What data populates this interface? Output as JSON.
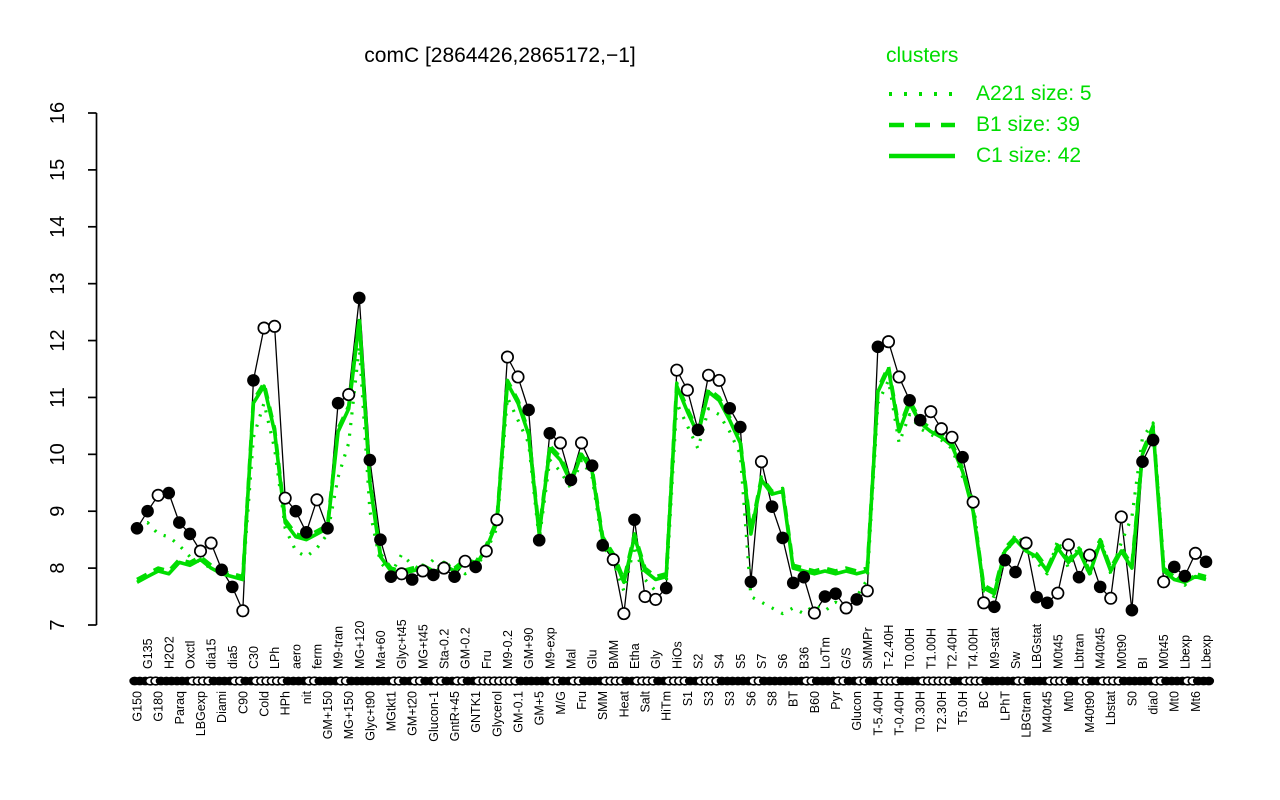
{
  "title": "comC [2864426,2865172,−1]",
  "colors": {
    "cluster": "#00dd00",
    "series": "#000000",
    "background": "#ffffff"
  },
  "legend": {
    "title": "clusters",
    "entries": [
      {
        "label": "A221 size: 5",
        "style": "dotted"
      },
      {
        "label": "B1 size: 39",
        "style": "dashed"
      },
      {
        "label": "C1 size: 42",
        "style": "solid"
      }
    ]
  },
  "axes": {
    "y": {
      "min": 7,
      "max": 16,
      "ticks": [
        7,
        8,
        9,
        10,
        11,
        12,
        13,
        14,
        15,
        16
      ]
    }
  },
  "chart_data": {
    "type": "line",
    "title": "comC [2864426,2865172,−1]",
    "xlabel": "",
    "ylabel": "",
    "ylim": [
      7,
      16
    ],
    "grid": false,
    "legend_position": "top-right",
    "categories": [
      "G150",
      "G135",
      "G180",
      "H2O2",
      "Paraq",
      "Oxctl",
      "LBGexp",
      "dia15",
      "Diami",
      "dia5",
      "C90",
      "C30",
      "Cold",
      "LPh",
      "HPh",
      "aero",
      "nit",
      "ferm",
      "GM+150",
      "M9-tran",
      "MG+150",
      "MG+120",
      "Glyc+t90",
      "Ma+60",
      "MGtkt1",
      "Glyc+t45",
      "GM+t20",
      "MG+t45",
      "Glucon-1",
      "Sta-0.2",
      "GntR+45",
      "GM-0.2",
      "GNTK1",
      "Fru",
      "Glycerol",
      "M9-0.2",
      "GM-0.1",
      "GM+90",
      "GM+5",
      "M9-exp",
      "M/G",
      "Mal",
      "Fru",
      "Glu",
      "SMM",
      "BMM",
      "Heat",
      "Etha",
      "Salt",
      "Gly",
      "HiTm",
      "HiOs",
      "S1",
      "S2",
      "S3",
      "S4",
      "S3",
      "S5",
      "S6",
      "S7",
      "S8",
      "S6",
      "BT",
      "B36",
      "B60",
      "LoTm",
      "Pyr",
      "G/S",
      "Glucon",
      "SMMPr",
      "T-5.40H",
      "T-2.40H",
      "T-0.40H",
      "T0.00H",
      "T0.30H",
      "T1.00H",
      "T2.30H",
      "T2.40H",
      "T5.0H",
      "T4.00H",
      "BC",
      "M9-stat",
      "LPhT",
      "Sw",
      "LBGtran",
      "LBGstat",
      "M40t45",
      "M0t45",
      "Mt0",
      "Lbtran",
      "M40t90",
      "M40t45",
      "Lbstat",
      "M0t90",
      "S0",
      "BI",
      "dia0",
      "M0t45",
      "Mt0",
      "Lbexp",
      "Mt6",
      "Lbexp"
    ],
    "series": [
      {
        "name": "comC",
        "role": "gene-profile",
        "color": "#000000",
        "marker": "circle",
        "values": [
          8.7,
          9.0,
          9.28,
          9.32,
          8.8,
          8.6,
          8.3,
          8.44,
          7.97,
          7.67,
          7.25,
          11.3,
          12.22,
          12.25,
          9.23,
          9.0,
          8.63,
          9.2,
          8.7,
          10.9,
          11.05,
          12.75,
          9.9,
          8.5,
          7.85,
          7.9,
          7.8,
          7.95,
          7.88,
          8.0,
          7.85,
          8.12,
          8.02,
          8.3,
          8.85,
          11.71,
          11.36,
          10.78,
          8.49,
          10.37,
          10.2,
          9.55,
          10.2,
          9.8,
          8.4,
          8.15,
          7.2,
          8.85,
          7.5,
          7.45,
          7.65,
          11.48,
          11.13,
          10.43,
          11.39,
          11.3,
          10.81,
          10.48,
          7.76,
          9.87,
          9.08,
          8.53,
          7.74,
          7.84,
          7.21,
          7.5,
          7.55,
          7.3,
          7.45,
          7.6,
          11.89,
          11.98,
          11.36,
          10.95,
          10.6,
          10.75,
          10.45,
          10.3,
          9.95,
          9.16,
          7.39,
          7.32,
          8.14,
          7.93,
          8.44,
          7.49,
          7.39,
          7.56,
          8.41,
          7.84,
          8.23,
          7.67,
          7.47,
          8.9,
          7.26,
          9.87,
          10.25,
          7.76,
          8.02,
          7.86,
          8.26,
          8.11
        ],
        "marker_filled": [
          1,
          1,
          0,
          1,
          1,
          1,
          0,
          0,
          1,
          1,
          0,
          1,
          0,
          0,
          0,
          1,
          1,
          0,
          1,
          1,
          0,
          1,
          1,
          1,
          1,
          0,
          1,
          0,
          1,
          0,
          1,
          0,
          1,
          0,
          0,
          0,
          0,
          1,
          1,
          1,
          0,
          1,
          0,
          1,
          1,
          0,
          0,
          1,
          0,
          0,
          1,
          0,
          0,
          1,
          0,
          0,
          1,
          1,
          1,
          0,
          1,
          1,
          1,
          1,
          0,
          1,
          1,
          0,
          1,
          0,
          1,
          0,
          0,
          1,
          1,
          0,
          0,
          0,
          1,
          0,
          0,
          1,
          1,
          1,
          0,
          1,
          1,
          0,
          0,
          1,
          0,
          1,
          0,
          0,
          1,
          1,
          1,
          0,
          1,
          1,
          0,
          1
        ]
      },
      {
        "name": "A221 size: 5",
        "role": "cluster-mean",
        "style": "dotted",
        "color": "#00dd00",
        "values": [
          8.75,
          8.8,
          8.6,
          8.55,
          8.4,
          8.2,
          8.1,
          8.0,
          7.95,
          7.85,
          7.8,
          10.3,
          10.9,
          10.1,
          8.7,
          8.3,
          8.2,
          8.35,
          8.6,
          9.6,
          10.2,
          11.9,
          9.0,
          8.1,
          7.9,
          8.24,
          8.06,
          7.95,
          8.15,
          8.0,
          8.1,
          7.9,
          8.0,
          8.3,
          8.7,
          11.0,
          10.6,
          10.2,
          8.5,
          9.9,
          9.7,
          9.4,
          9.9,
          9.6,
          8.4,
          8.1,
          7.6,
          8.4,
          7.8,
          7.6,
          7.7,
          10.9,
          10.5,
          10.1,
          10.8,
          10.7,
          10.4,
          10.0,
          7.5,
          7.4,
          7.3,
          7.2,
          7.3,
          7.2,
          7.35,
          7.25,
          7.4,
          7.3,
          7.5,
          7.8,
          10.9,
          11.3,
          10.2,
          10.7,
          10.45,
          10.35,
          10.25,
          10.1,
          9.6,
          9.2,
          7.6,
          7.5,
          8.2,
          8.6,
          8.4,
          8.1,
          7.9,
          8.5,
          8.0,
          8.4,
          7.85,
          8.55,
          7.9,
          8.45,
          8.9,
          10.3,
          10.55,
          8.1,
          7.9,
          7.7,
          7.9,
          7.75
        ]
      },
      {
        "name": "B1 size: 39",
        "role": "cluster-mean",
        "style": "dashed",
        "color": "#00dd00",
        "values": [
          7.8,
          7.9,
          8.0,
          7.95,
          8.15,
          8.1,
          8.2,
          8.05,
          7.95,
          7.9,
          7.85,
          10.95,
          11.25,
          10.45,
          8.85,
          8.6,
          8.55,
          8.65,
          8.75,
          10.45,
          10.85,
          12.4,
          9.55,
          8.25,
          8.0,
          7.95,
          8.0,
          8.05,
          7.95,
          8.1,
          8.0,
          8.15,
          8.1,
          8.4,
          8.85,
          11.3,
          10.95,
          10.4,
          8.65,
          10.15,
          9.95,
          9.55,
          10.05,
          9.75,
          8.55,
          8.25,
          7.8,
          8.6,
          8.0,
          7.85,
          7.9,
          11.25,
          10.8,
          10.4,
          11.15,
          11.0,
          10.65,
          10.25,
          8.65,
          9.6,
          9.35,
          9.4,
          8.05,
          8.0,
          7.95,
          8.0,
          7.95,
          8.0,
          7.95,
          8.0,
          11.15,
          11.55,
          10.45,
          10.95,
          10.6,
          10.45,
          10.35,
          10.2,
          9.75,
          9.05,
          7.7,
          7.6,
          8.35,
          8.55,
          8.35,
          8.25,
          8.0,
          8.4,
          8.15,
          8.35,
          7.95,
          8.5,
          8.0,
          8.35,
          8.05,
          10.05,
          10.5,
          8.0,
          7.85,
          7.8,
          7.9,
          7.85
        ]
      },
      {
        "name": "C1 size: 42",
        "role": "cluster-mean",
        "style": "solid",
        "color": "#00dd00",
        "values": [
          7.75,
          7.85,
          7.95,
          7.9,
          8.1,
          8.05,
          8.15,
          8.0,
          7.9,
          7.85,
          7.8,
          10.9,
          11.2,
          10.4,
          8.8,
          8.55,
          8.5,
          8.6,
          8.7,
          10.4,
          10.8,
          12.35,
          9.5,
          8.2,
          7.95,
          7.9,
          7.95,
          8.0,
          7.9,
          8.05,
          7.95,
          8.1,
          8.05,
          8.35,
          8.8,
          11.25,
          10.9,
          10.35,
          8.6,
          10.1,
          9.9,
          9.5,
          10.0,
          9.7,
          8.5,
          8.2,
          7.75,
          8.55,
          7.95,
          7.8,
          7.85,
          11.2,
          10.75,
          10.35,
          11.1,
          10.95,
          10.6,
          10.2,
          8.6,
          9.55,
          9.3,
          9.35,
          8.0,
          7.95,
          7.9,
          7.95,
          7.9,
          7.95,
          7.9,
          7.95,
          11.1,
          11.5,
          10.4,
          10.9,
          10.55,
          10.4,
          10.3,
          10.15,
          9.7,
          9.0,
          7.65,
          7.55,
          8.3,
          8.5,
          8.3,
          8.2,
          7.95,
          8.35,
          8.1,
          8.3,
          7.9,
          8.45,
          7.95,
          8.3,
          8.0,
          10.0,
          10.45,
          7.95,
          7.8,
          7.75,
          7.85,
          7.8
        ]
      }
    ]
  }
}
